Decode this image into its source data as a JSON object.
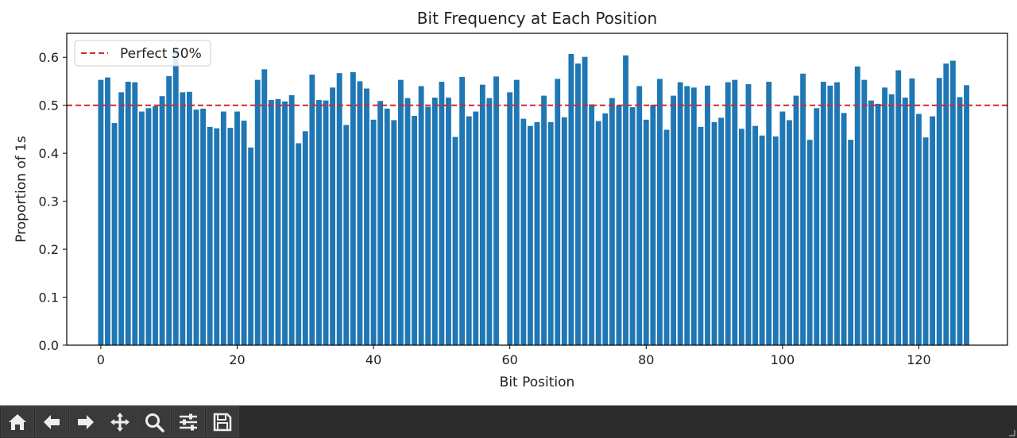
{
  "chart_data": {
    "type": "bar",
    "title": "Bit Frequency at Each Position",
    "xlabel": "Bit Position",
    "ylabel": "Proportion of 1s",
    "xlim": [
      -5,
      133
    ],
    "ylim": [
      0,
      0.65
    ],
    "xticks": [
      0,
      20,
      40,
      60,
      80,
      100,
      120
    ],
    "yticks": [
      0.0,
      0.1,
      0.2,
      0.3,
      0.4,
      0.5,
      0.6
    ],
    "bar_color": "#1f77b4",
    "reference_line": {
      "y": 0.5,
      "label": "Perfect 50%",
      "color": "#d62728",
      "style": "dashed"
    },
    "legend": {
      "position": "top-left",
      "entries": [
        "Perfect 50%"
      ]
    },
    "grid": false,
    "x": [
      0,
      1,
      2,
      3,
      4,
      5,
      6,
      7,
      8,
      9,
      10,
      11,
      12,
      13,
      14,
      15,
      16,
      17,
      18,
      19,
      20,
      21,
      22,
      23,
      24,
      25,
      26,
      27,
      28,
      29,
      30,
      31,
      32,
      33,
      34,
      35,
      36,
      37,
      38,
      39,
      40,
      41,
      42,
      43,
      44,
      45,
      46,
      47,
      48,
      49,
      50,
      51,
      52,
      53,
      54,
      55,
      56,
      57,
      58,
      59,
      60,
      61,
      62,
      63,
      64,
      65,
      66,
      67,
      68,
      69,
      70,
      71,
      72,
      73,
      74,
      75,
      76,
      77,
      78,
      79,
      80,
      81,
      82,
      83,
      84,
      85,
      86,
      87,
      88,
      89,
      90,
      91,
      92,
      93,
      94,
      95,
      96,
      97,
      98,
      99,
      100,
      101,
      102,
      103,
      104,
      105,
      106,
      107,
      108,
      109,
      110,
      111,
      112,
      113,
      114,
      115,
      116,
      117,
      118,
      119,
      120,
      121,
      122,
      123,
      124,
      125,
      126,
      127
    ],
    "values": [
      0.553,
      0.558,
      0.463,
      0.527,
      0.549,
      0.548,
      0.487,
      0.494,
      0.498,
      0.519,
      0.561,
      0.618,
      0.527,
      0.528,
      0.491,
      0.493,
      0.455,
      0.452,
      0.487,
      0.453,
      0.487,
      0.468,
      0.412,
      0.553,
      0.575,
      0.511,
      0.513,
      0.508,
      0.521,
      0.421,
      0.446,
      0.564,
      0.511,
      0.51,
      0.537,
      0.567,
      0.459,
      0.569,
      0.55,
      0.535,
      0.47,
      0.509,
      0.493,
      0.469,
      0.553,
      0.515,
      0.478,
      0.54,
      0.497,
      0.516,
      0.549,
      0.516,
      0.434,
      0.559,
      0.477,
      0.487,
      0.543,
      0.515,
      0.56,
      0.0,
      0.527,
      0.553,
      0.472,
      0.457,
      0.465,
      0.52,
      0.465,
      0.555,
      0.475,
      0.607,
      0.587,
      0.601,
      0.502,
      0.467,
      0.483,
      0.515,
      0.5,
      0.604,
      0.496,
      0.54,
      0.47,
      0.501,
      0.555,
      0.449,
      0.52,
      0.548,
      0.54,
      0.537,
      0.455,
      0.541,
      0.465,
      0.474,
      0.548,
      0.553,
      0.451,
      0.544,
      0.457,
      0.437,
      0.549,
      0.435,
      0.487,
      0.469,
      0.52,
      0.566,
      0.428,
      0.494,
      0.549,
      0.541,
      0.548,
      0.484,
      0.428,
      0.581,
      0.553,
      0.51,
      0.503,
      0.537,
      0.523,
      0.573,
      0.516,
      0.556,
      0.482,
      0.433,
      0.477,
      0.557,
      0.587,
      0.593,
      0.517,
      0.542
    ]
  },
  "toolbar": {
    "buttons": [
      {
        "name": "home-button",
        "icon": "home-icon"
      },
      {
        "name": "back-button",
        "icon": "arrow-left-icon"
      },
      {
        "name": "forward-button",
        "icon": "arrow-right-icon"
      },
      {
        "name": "pan-button",
        "icon": "move-icon"
      },
      {
        "name": "zoom-button",
        "icon": "magnifier-icon"
      },
      {
        "name": "configure-subplots-button",
        "icon": "sliders-icon"
      },
      {
        "name": "save-button",
        "icon": "floppy-disk-icon"
      }
    ],
    "background": "#2b2b2b"
  }
}
